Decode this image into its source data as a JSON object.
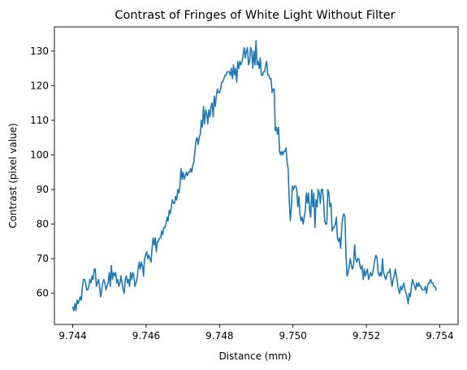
{
  "chart_data": {
    "type": "line",
    "title": "Contrast of Fringes of White Light Without Filter",
    "xlabel": "Distance (mm)",
    "ylabel": "Contrast (pixel value)",
    "xlim": [
      9.7435,
      9.7545
    ],
    "ylim": [
      51,
      137
    ],
    "x_ticks": [
      "9.744",
      "9.746",
      "9.748",
      "9.750",
      "9.752",
      "9.754"
    ],
    "x_tick_values": [
      9.744,
      9.746,
      9.748,
      9.75,
      9.752,
      9.754
    ],
    "y_ticks": [
      "60",
      "70",
      "80",
      "90",
      "100",
      "110",
      "120",
      "130"
    ],
    "y_tick_values": [
      60,
      70,
      80,
      90,
      100,
      110,
      120,
      130
    ],
    "grid": false,
    "colors": {
      "line": "#1f77b4"
    },
    "series": [
      {
        "x_start": 9.744,
        "x_end": 9.7539,
        "values": [
          56,
          55,
          57,
          55,
          58,
          57,
          58,
          59,
          58,
          62,
          64,
          64,
          63,
          61,
          61,
          62,
          64,
          63,
          65,
          64,
          67,
          67,
          62,
          63,
          64,
          62,
          59,
          61,
          63,
          64,
          63,
          61,
          62,
          63,
          66,
          62,
          68,
          64,
          66,
          65,
          66,
          63,
          64,
          62,
          63,
          65,
          63,
          61,
          60,
          64,
          65,
          63,
          64,
          62,
          66,
          64,
          66,
          65,
          62,
          63,
          64,
          67,
          69,
          67,
          69,
          68,
          65,
          70,
          71,
          72,
          70,
          71,
          70,
          69,
          73,
          76,
          74,
          76,
          72,
          75,
          75,
          76,
          76,
          78,
          77,
          79,
          79,
          80,
          82,
          81,
          84,
          83,
          85,
          87,
          86,
          86,
          88,
          87,
          90,
          89,
          91,
          96,
          93,
          95,
          93,
          94,
          95,
          94,
          95,
          95,
          96,
          95,
          97,
          98,
          101,
          104,
          105,
          103,
          105,
          106,
          110,
          108,
          114,
          109,
          113,
          112,
          109,
          113,
          111,
          114,
          115,
          111,
          117,
          114,
          117,
          119,
          118,
          118,
          119,
          121,
          121,
          122,
          123,
          123,
          124,
          124,
          124,
          123,
          125,
          122,
          126,
          123,
          125,
          121,
          127,
          125,
          127,
          126,
          127,
          129,
          131,
          128,
          130,
          131,
          126,
          127,
          131,
          130,
          125,
          130,
          126,
          133,
          126,
          127,
          125,
          128,
          123,
          123,
          124,
          124,
          126,
          127,
          123,
          123,
          122,
          122,
          118,
          119,
          119,
          107,
          108,
          106,
          108,
          101,
          100,
          101,
          100,
          101,
          101,
          102,
          98,
          96,
          87,
          81,
          85,
          91,
          90,
          91,
          91,
          90,
          85,
          88,
          83,
          81,
          82,
          80,
          82,
          84,
          89,
          86,
          89,
          84,
          82,
          90,
          85,
          89,
          79,
          87,
          85,
          90,
          89,
          86,
          90,
          90,
          87,
          81,
          80,
          80,
          90,
          89,
          85,
          86,
          78,
          79,
          79,
          80,
          82,
          76,
          75,
          76,
          73,
          79,
          82,
          83,
          82,
          71,
          65,
          66,
          68,
          70,
          68,
          67,
          68,
          74,
          70,
          69,
          70,
          70,
          68,
          67,
          68,
          64,
          67,
          65,
          66,
          67,
          64,
          65,
          66,
          65,
          66,
          68,
          70,
          71,
          70,
          66,
          65,
          66,
          65,
          70,
          66,
          65,
          64,
          65,
          66,
          66,
          67,
          64,
          62,
          64,
          65,
          67,
          65,
          63,
          61,
          60,
          62,
          61,
          62,
          63,
          61,
          60,
          59,
          57,
          60,
          59,
          62,
          64,
          63,
          62,
          61,
          63,
          62,
          63,
          62,
          62,
          61,
          61,
          61,
          62,
          60,
          62,
          63,
          63,
          64,
          63,
          63,
          62,
          62,
          61
        ]
      }
    ]
  }
}
